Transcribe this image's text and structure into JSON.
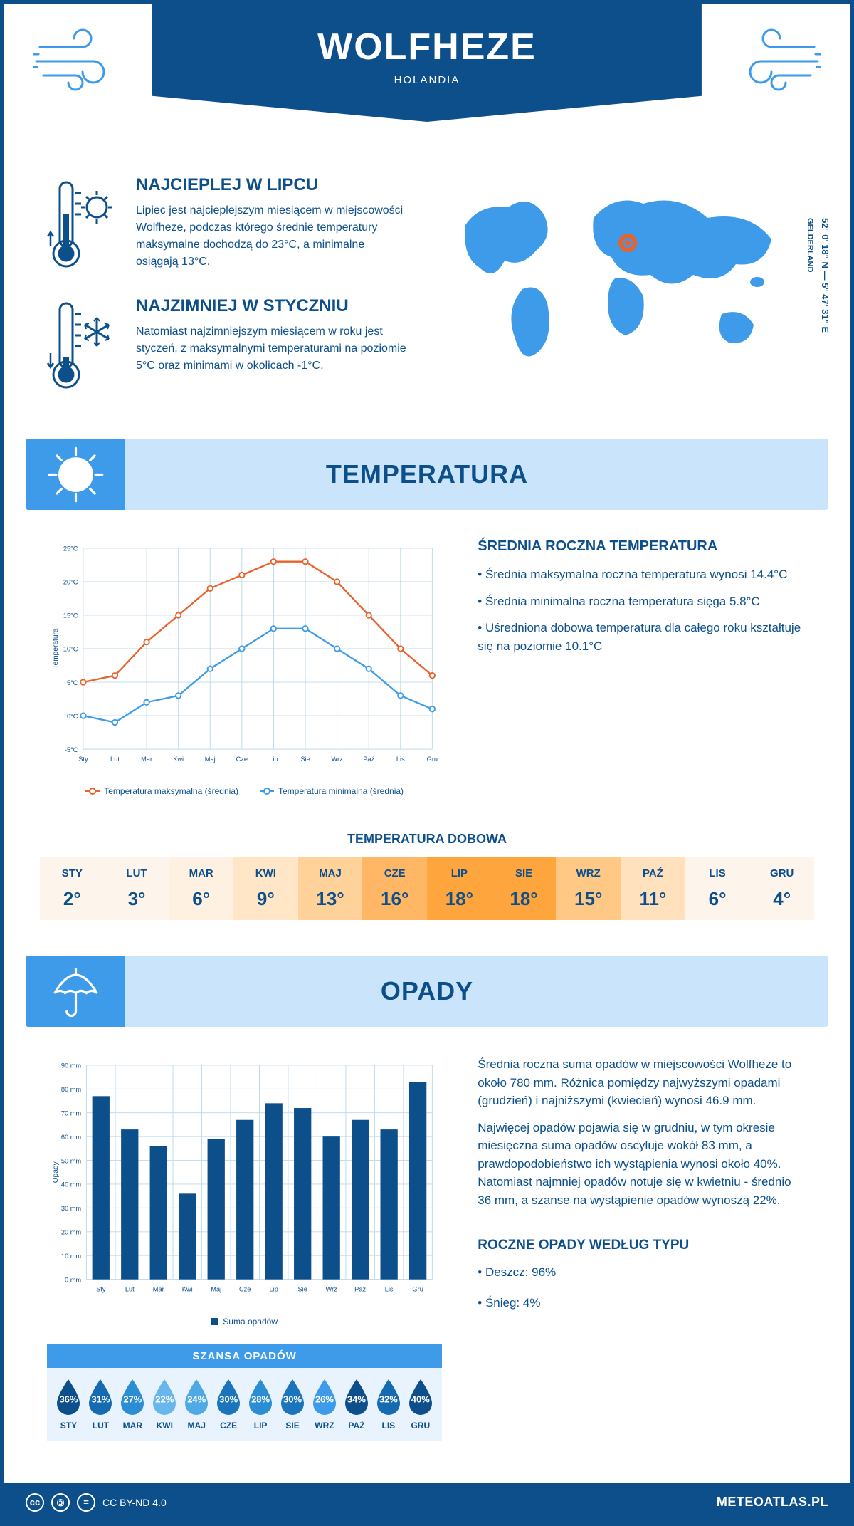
{
  "header": {
    "city": "WOLFHEZE",
    "country": "HOLANDIA",
    "coords_line1": "52° 0' 18\" N — 5° 47' 31\" E",
    "coords_line2": "GELDERLAND"
  },
  "facts": {
    "hot": {
      "title": "NAJCIEPLEJ W LIPCU",
      "body": "Lipiec jest najcieplejszym miesiącem w miejscowości Wolfheze, podczas którego średnie temperatury maksymalne dochodzą do 23°C, a minimalne osiągają 13°C."
    },
    "cold": {
      "title": "NAJZIMNIEJ W STYCZNIU",
      "body": "Natomiast najzimniejszym miesiącem w roku jest styczeń, z maksymalnymi temperaturami na poziomie 5°C oraz minimami w okolicach -1°C."
    }
  },
  "temp_section": {
    "banner": "TEMPERATURA",
    "chart": {
      "type": "line",
      "months": [
        "Sty",
        "Lut",
        "Mar",
        "Kwi",
        "Maj",
        "Cze",
        "Lip",
        "Sie",
        "Wrz",
        "Paź",
        "Lis",
        "Gru"
      ],
      "ylabel": "Temperatura",
      "ylim_min": -5,
      "ylim_max": 25,
      "ytick_step": 5,
      "ytick_labels": [
        "-5°C",
        "0°C",
        "5°C",
        "10°C",
        "15°C",
        "20°C",
        "25°C"
      ],
      "series_max": {
        "label": "Temperatura maksymalna (średnia)",
        "color": "#e8622c",
        "values": [
          5,
          6,
          11,
          15,
          19,
          21,
          23,
          23,
          20,
          15,
          10,
          6
        ]
      },
      "series_min": {
        "label": "Temperatura minimalna (średnia)",
        "color": "#3d9be9",
        "values": [
          0,
          -1,
          2,
          3,
          7,
          10,
          13,
          13,
          10,
          7,
          3,
          1
        ]
      },
      "grid_color": "#bcd9ec",
      "background": "#ffffff"
    },
    "summary": {
      "title": "ŚREDNIA ROCZNA TEMPERATURA",
      "items": [
        "• Średnia maksymalna roczna temperatura wynosi 14.4°C",
        "• Średnia minimalna roczna temperatura sięga 5.8°C",
        "• Uśredniona dobowa temperatura dla całego roku kształtuje się na poziomie 10.1°C"
      ]
    },
    "daily": {
      "title": "TEMPERATURA DOBOWA",
      "months": [
        "STY",
        "LUT",
        "MAR",
        "KWI",
        "MAJ",
        "CZE",
        "LIP",
        "SIE",
        "WRZ",
        "PAŹ",
        "LIS",
        "GRU"
      ],
      "values": [
        "2°",
        "3°",
        "6°",
        "9°",
        "13°",
        "16°",
        "18°",
        "18°",
        "15°",
        "11°",
        "6°",
        "4°"
      ],
      "cell_colors": [
        "#fdf4ec",
        "#fdf4ec",
        "#fff1e2",
        "#ffe6c7",
        "#ffd29a",
        "#ffb766",
        "#ffa53d",
        "#ffa53d",
        "#ffc884",
        "#ffe1be",
        "#fdf4ec",
        "#fdf4ec"
      ]
    }
  },
  "rain_section": {
    "banner": "OPADY",
    "chart": {
      "type": "bar",
      "months": [
        "Sty",
        "Lut",
        "Mar",
        "Kwi",
        "Maj",
        "Cze",
        "Lip",
        "Sie",
        "Wrz",
        "Paź",
        "Lis",
        "Gru"
      ],
      "ylabel": "Opady",
      "ylim_min": 0,
      "ylim_max": 90,
      "ytick_step": 10,
      "ytick_labels": [
        "0 mm",
        "10 mm",
        "20 mm",
        "30 mm",
        "40 mm",
        "50 mm",
        "60 mm",
        "70 mm",
        "80 mm",
        "90 mm"
      ],
      "values": [
        77,
        63,
        56,
        36,
        59,
        67,
        74,
        72,
        60,
        67,
        63,
        83
      ],
      "bar_color": "#0d4f8b",
      "grid_color": "#bcd9ec",
      "legend_label": "Suma opadów"
    },
    "summary": {
      "p1": "Średnia roczna suma opadów w miejscowości Wolfheze to około 780 mm. Różnica pomiędzy najwyższymi opadami (grudzień) i najniższymi (kwiecień) wynosi 46.9 mm.",
      "p2": "Najwięcej opadów pojawia się w grudniu, w tym okresie miesięczna suma opadów oscyluje wokół 83 mm, a prawdopodobieństwo ich wystąpienia wynosi około 40%. Natomiast najmniej opadów notuje się w kwietniu - średnio 36 mm, a szanse na wystąpienie opadów wynoszą 22%."
    },
    "chance": {
      "title": "SZANSA OPADÓW",
      "months": [
        "STY",
        "LUT",
        "MAR",
        "KWI",
        "MAJ",
        "CZE",
        "LIP",
        "SIE",
        "WRZ",
        "PAŹ",
        "LIS",
        "GRU"
      ],
      "values": [
        36,
        31,
        27,
        22,
        24,
        30,
        28,
        30,
        26,
        34,
        32,
        40
      ],
      "drop_colors": [
        "#0d4f8b",
        "#156bb1",
        "#2b8dd3",
        "#67b7ec",
        "#4fa9e4",
        "#1a75bd",
        "#2b8dd3",
        "#1a75bd",
        "#3d9be9",
        "#0d4f8b",
        "#156bb1",
        "#0d4f8b"
      ]
    },
    "types": {
      "title": "ROCZNE OPADY WEDŁUG TYPU",
      "items": [
        "• Deszcz: 96%",
        "• Śnieg: 4%"
      ]
    }
  },
  "footer": {
    "license": "CC BY-ND 4.0",
    "site": "METEOATLAS.PL"
  }
}
